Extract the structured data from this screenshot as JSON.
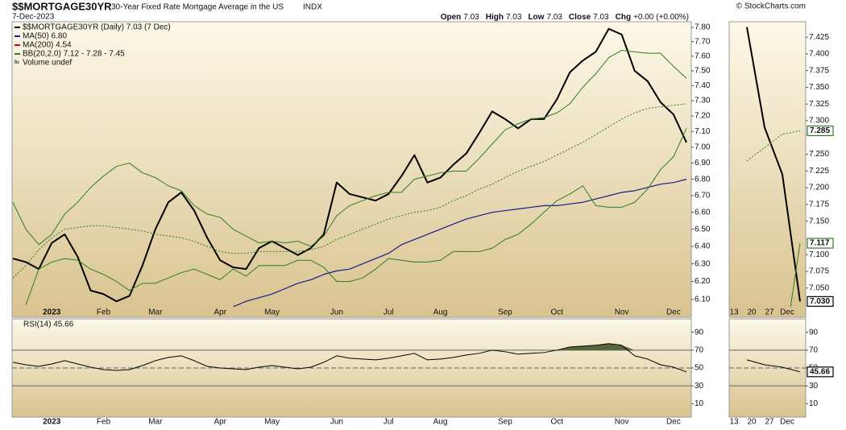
{
  "header": {
    "symbol": "$$MORTGAGE30YR",
    "description": "30-Year Fixed Rate Mortgage Average in the US",
    "exchange": "INDX",
    "date": "7-Dec-2023",
    "credit": "© StockCharts.com",
    "quote": [
      {
        "label": "Open",
        "value": "7.03"
      },
      {
        "label": "High",
        "value": "7.03"
      },
      {
        "label": "Low",
        "value": "7.03"
      },
      {
        "label": "Close",
        "value": "7.03"
      },
      {
        "label": "Chg",
        "value": "+0.00 (+0.00%)"
      }
    ]
  },
  "chart_data": [
    {
      "type": "line",
      "log_scale": true,
      "categories": [
        null,
        null,
        null,
        "2023",
        null,
        null,
        null,
        "Feb",
        null,
        null,
        null,
        "Mar",
        null,
        null,
        null,
        null,
        "Apr",
        null,
        null,
        null,
        "May",
        null,
        null,
        null,
        null,
        "Jun",
        null,
        null,
        null,
        "Jul",
        null,
        null,
        null,
        "Aug",
        null,
        null,
        null,
        null,
        "Sep",
        null,
        null,
        null,
        "Oct",
        null,
        null,
        null,
        null,
        "Nov",
        null,
        null,
        null,
        "Dec",
        null
      ],
      "ylim": [
        6.06,
        7.84
      ],
      "yticks": [
        {
          "value": 6.1,
          "label": "6.10"
        },
        {
          "value": 6.2,
          "label": "6.20"
        },
        {
          "value": 6.3,
          "label": "6.30"
        },
        {
          "value": 6.4,
          "label": "6.40"
        },
        {
          "value": 6.5,
          "label": "6.50"
        },
        {
          "value": 6.6,
          "label": "6.60"
        },
        {
          "value": 6.7,
          "label": "6.70"
        },
        {
          "value": 6.8,
          "label": "6.80"
        },
        {
          "value": 6.9,
          "label": "6.90"
        },
        {
          "value": 7,
          "label": "7.00"
        },
        {
          "value": 7.1,
          "label": "7.10"
        },
        {
          "value": 7.2,
          "label": "7.20"
        },
        {
          "value": 7.3,
          "label": "7.30"
        },
        {
          "value": 7.4,
          "label": "7.40"
        },
        {
          "value": 7.5,
          "label": "7.50"
        },
        {
          "value": 7.6,
          "label": "7.60"
        },
        {
          "value": 7.7,
          "label": "7.70"
        },
        {
          "value": 7.8,
          "label": "7.80"
        }
      ],
      "legend": {
        "position": "upper left",
        "items": [
          {
            "name": "$$MORTGAGE30YR (Daily) 7.03 (7 Dec)",
            "color": "#000000"
          },
          {
            "name": "MA(50) 6.80",
            "color": "#1a1a8c"
          },
          {
            "name": "MA(200) 4.54",
            "color": "#cc0000"
          },
          {
            "name": "BB(20,2.0) 7.12 - 7.28 - 7.45",
            "color": "#2e7d1e"
          },
          {
            "name": "Volume undef",
            "color": "#777777"
          }
        ]
      },
      "series": [
        {
          "color": "#000000",
          "width": 2,
          "values": [
            6.33,
            6.31,
            6.27,
            6.42,
            6.47,
            6.34,
            6.15,
            6.13,
            6.09,
            6.12,
            6.29,
            6.5,
            6.66,
            6.72,
            6.61,
            6.45,
            6.32,
            6.28,
            6.27,
            6.39,
            6.43,
            6.39,
            6.35,
            6.39,
            6.47,
            6.78,
            6.71,
            6.69,
            6.67,
            6.71,
            6.82,
            6.95,
            6.78,
            6.81,
            6.89,
            6.96,
            7.09,
            7.23,
            7.18,
            7.12,
            7.18,
            7.18,
            7.31,
            7.49,
            7.57,
            7.63,
            7.79,
            7.75,
            7.5,
            7.43,
            7.29,
            7.21,
            7.03
          ]
        },
        {
          "color": "#1a1a8c",
          "width": 1.2,
          "values": [
            null,
            null,
            null,
            null,
            null,
            null,
            null,
            null,
            null,
            null,
            null,
            null,
            null,
            null,
            null,
            null,
            null,
            6.06,
            6.09,
            6.11,
            6.13,
            6.16,
            6.19,
            6.21,
            6.24,
            6.26,
            6.27,
            6.3,
            6.33,
            6.36,
            6.41,
            6.44,
            6.47,
            6.5,
            6.53,
            6.56,
            6.58,
            6.6,
            6.61,
            6.62,
            6.63,
            6.64,
            6.64,
            6.65,
            6.66,
            6.68,
            6.7,
            6.72,
            6.73,
            6.75,
            6.77,
            6.78,
            6.8
          ]
        },
        {
          "color": "#2e7d1e",
          "width": 1,
          "dash": "dotted",
          "values": [
            6.22,
            6.29,
            6.38,
            6.45,
            6.5,
            6.51,
            6.52,
            6.52,
            6.51,
            6.5,
            6.49,
            6.47,
            6.46,
            6.45,
            6.43,
            6.4,
            6.37,
            6.36,
            6.36,
            6.37,
            6.37,
            6.37,
            6.37,
            6.38,
            6.4,
            6.44,
            6.47,
            6.5,
            6.53,
            6.56,
            6.58,
            6.6,
            6.61,
            6.63,
            6.67,
            6.7,
            6.74,
            6.77,
            6.81,
            6.85,
            6.88,
            6.91,
            6.95,
            6.99,
            7.03,
            7.08,
            7.13,
            7.18,
            7.22,
            7.25,
            7.26,
            7.27,
            7.28
          ]
        },
        {
          "color": "#2e7d1e",
          "width": 1,
          "values": [
            6.66,
            6.5,
            6.41,
            6.47,
            6.59,
            6.66,
            6.75,
            6.82,
            6.88,
            6.9,
            6.84,
            6.81,
            6.76,
            6.73,
            6.64,
            6.59,
            6.57,
            6.5,
            6.46,
            6.42,
            6.43,
            6.42,
            6.43,
            6.4,
            6.46,
            6.58,
            6.64,
            6.67,
            6.7,
            6.72,
            6.72,
            6.8,
            6.82,
            6.84,
            6.85,
            6.85,
            6.93,
            7.02,
            7.11,
            7.15,
            7.18,
            7.19,
            7.22,
            7.28,
            7.39,
            7.48,
            7.59,
            7.64,
            7.63,
            7.62,
            7.62,
            7.53,
            7.45
          ]
        },
        {
          "color": "#2e7d1e",
          "width": 1,
          "values": [
            null,
            6.07,
            6.27,
            6.31,
            6.33,
            6.32,
            6.27,
            6.24,
            6.2,
            6.15,
            6.19,
            6.19,
            6.22,
            6.25,
            6.27,
            6.24,
            6.21,
            6.27,
            6.23,
            6.29,
            6.29,
            6.29,
            6.32,
            6.32,
            6.28,
            6.2,
            6.2,
            6.22,
            6.27,
            6.33,
            6.32,
            6.31,
            6.31,
            6.32,
            6.37,
            6.37,
            6.37,
            6.39,
            6.44,
            6.47,
            6.53,
            6.6,
            6.67,
            6.71,
            6.76,
            6.64,
            6.63,
            6.63,
            6.66,
            6.74,
            6.86,
            6.94,
            7.12
          ]
        }
      ]
    },
    {
      "type": "line",
      "title": "RSI(14) 45.66",
      "categories": [
        null,
        null,
        null,
        "2023",
        null,
        null,
        null,
        "Feb",
        null,
        null,
        null,
        "Mar",
        null,
        null,
        null,
        null,
        "Apr",
        null,
        null,
        null,
        "May",
        null,
        null,
        null,
        null,
        "Jun",
        null,
        null,
        null,
        "Jul",
        null,
        null,
        null,
        "Aug",
        null,
        null,
        null,
        null,
        "Sep",
        null,
        null,
        null,
        "Oct",
        null,
        null,
        null,
        null,
        "Nov",
        null,
        null,
        null,
        "Dec",
        null
      ],
      "ylim": [
        -5,
        105
      ],
      "yticks": [
        10,
        30,
        50,
        70,
        90
      ],
      "hlines": [
        {
          "value": 70,
          "style": "solid"
        },
        {
          "value": 50,
          "style": "dashed"
        },
        {
          "value": 30,
          "style": "solid"
        }
      ],
      "overbought_fill": {
        "above": 70,
        "color": "#56663a"
      },
      "series": [
        {
          "color": "#000000",
          "width": 1,
          "values": [
            56.4,
            53.6,
            51.8,
            54.5,
            58.2,
            54.5,
            50.9,
            48.2,
            47.3,
            48.2,
            52.7,
            58.2,
            61.8,
            63.6,
            58.2,
            51.8,
            50,
            49.1,
            48.2,
            50.9,
            52.7,
            50.9,
            49.1,
            50.9,
            56.4,
            63.6,
            60.9,
            60,
            59.1,
            60.9,
            63.6,
            66.4,
            59.1,
            60,
            61.8,
            64.5,
            66.4,
            70,
            68.2,
            65.5,
            66.4,
            67.3,
            70,
            73.6,
            74.5,
            75.5,
            77.3,
            75.5,
            63.6,
            60,
            53.6,
            50.9,
            45.66
          ]
        }
      ]
    },
    {
      "type": "line",
      "categories": [
        "13",
        "20",
        "27",
        "Dec"
      ],
      "ylim": [
        7.022,
        7.448
      ],
      "yticks": [
        {
          "value": 7.05,
          "label": "7.050"
        },
        7.075,
        {
          "value": 7.1,
          "label": "7.100"
        },
        {
          "value": 7.15,
          "label": "7.150"
        },
        7.175,
        {
          "value": 7.2,
          "label": "7.200"
        },
        7.225,
        {
          "value": 7.25,
          "label": "7.250"
        },
        {
          "value": 7.3,
          "label": "7.300"
        },
        7.325,
        {
          "value": 7.35,
          "label": "7.350"
        },
        7.375,
        {
          "value": 7.4,
          "label": "7.400"
        },
        7.425
      ],
      "series": [
        {
          "color": "#000000",
          "width": 2,
          "values": [
            7.44,
            7.29,
            7.22,
            7.03
          ],
          "value_labels": [
            null,
            null,
            null,
            "7.030"
          ]
        },
        {
          "color": "#2e7d1e",
          "width": 1,
          "dash": "dotted",
          "values": [
            7.24,
            7.26,
            7.28,
            7.285
          ],
          "value_labels": [
            null,
            null,
            null,
            "7.285"
          ]
        },
        {
          "color": "#2e7d1e",
          "width": 1,
          "values": [
            null,
            null,
            6.94,
            7.117
          ],
          "value_labels": [
            null,
            null,
            null,
            "7.117"
          ]
        }
      ]
    },
    {
      "type": "line",
      "categories": [
        "13",
        "20",
        "27",
        "Dec"
      ],
      "ylim": [
        -5,
        105
      ],
      "yticks": [
        10,
        30,
        50,
        70,
        90
      ],
      "hlines": [
        {
          "value": 70,
          "style": "solid"
        },
        {
          "value": 50,
          "style": "dashed"
        },
        {
          "value": 30,
          "style": "solid"
        }
      ],
      "series": [
        {
          "color": "#000000",
          "width": 1,
          "values": [
            59.1,
            53.6,
            50.9,
            45.66
          ],
          "value_labels": [
            null,
            null,
            null,
            "45.66"
          ]
        }
      ]
    }
  ]
}
